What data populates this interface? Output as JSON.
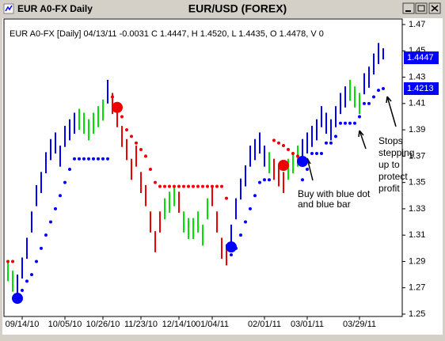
{
  "window_title": "EUR A0-FX Daily",
  "chart_data": {
    "type": "hl_bars",
    "title": "EUR/USD (FOREX)",
    "info": "EUR A0-FX [Daily] 04/13/11  -0.0031 C 1.4447, H 1.4520, L 1.4435, O 1.4478, V 0",
    "categories": [
      null,
      null,
      null,
      "09/14/10",
      null,
      null,
      null,
      null,
      null,
      null,
      null,
      null,
      "10/05/10",
      null,
      null,
      null,
      null,
      null,
      null,
      null,
      "10/26/10",
      null,
      null,
      null,
      null,
      null,
      null,
      null,
      "11/23/10",
      null,
      null,
      null,
      null,
      null,
      null,
      null,
      "12/14/10",
      null,
      null,
      null,
      null,
      null,
      null,
      "01/04/11",
      null,
      null,
      null,
      null,
      null,
      null,
      null,
      null,
      null,
      null,
      "02/01/11",
      null,
      null,
      null,
      null,
      null,
      null,
      null,
      null,
      "03/01/11",
      null,
      null,
      null,
      null,
      null,
      null,
      null,
      null,
      null,
      null,
      "03/29/11",
      null,
      null,
      null,
      null,
      null
    ],
    "high": [
      1.291,
      1.283,
      1.28,
      1.293,
      1.308,
      1.328,
      1.348,
      1.358,
      1.373,
      1.383,
      1.388,
      1.378,
      1.393,
      1.398,
      1.403,
      1.406,
      1.403,
      1.398,
      1.403,
      1.408,
      1.413,
      1.428,
      1.418,
      1.408,
      1.393,
      1.383,
      1.368,
      1.378,
      1.358,
      1.348,
      1.328,
      1.313,
      1.328,
      1.338,
      1.343,
      1.348,
      1.343,
      1.328,
      1.323,
      1.323,
      1.328,
      1.318,
      1.338,
      1.348,
      1.328,
      1.308,
      1.303,
      1.318,
      1.338,
      1.353,
      1.363,
      1.378,
      1.383,
      1.388,
      1.378,
      1.373,
      1.368,
      1.363,
      1.358,
      1.368,
      1.373,
      1.378,
      1.383,
      1.388,
      1.393,
      1.398,
      1.408,
      1.403,
      1.398,
      1.408,
      1.418,
      1.423,
      1.428,
      1.423,
      1.418,
      1.433,
      1.438,
      1.448,
      1.456,
      1.452
    ],
    "low": [
      1.275,
      1.267,
      1.264,
      1.277,
      1.292,
      1.312,
      1.332,
      1.342,
      1.357,
      1.367,
      1.372,
      1.362,
      1.377,
      1.382,
      1.387,
      1.39,
      1.387,
      1.382,
      1.387,
      1.392,
      1.397,
      1.41,
      1.402,
      1.392,
      1.377,
      1.367,
      1.352,
      1.362,
      1.342,
      1.332,
      1.312,
      1.297,
      1.312,
      1.322,
      1.327,
      1.332,
      1.327,
      1.312,
      1.307,
      1.307,
      1.312,
      1.302,
      1.322,
      1.332,
      1.312,
      1.292,
      1.287,
      1.302,
      1.322,
      1.337,
      1.347,
      1.362,
      1.367,
      1.372,
      1.362,
      1.357,
      1.352,
      1.347,
      1.342,
      1.352,
      1.357,
      1.362,
      1.367,
      1.372,
      1.377,
      1.382,
      1.392,
      1.387,
      1.382,
      1.392,
      1.402,
      1.407,
      1.412,
      1.407,
      1.402,
      1.417,
      1.422,
      1.432,
      1.44,
      1.4435
    ],
    "bar_colors": "ggbbbbbbbbbbbbbggggggbrrrrrrrrrrrgggrggggggrrrrbbbbbbbbgrrrgggbbbbbbbbbbgggbbbbb",
    "stops": [
      1.29,
      1.29,
      1.265,
      1.268,
      1.275,
      1.28,
      1.29,
      1.3,
      1.31,
      1.32,
      1.33,
      1.34,
      1.35,
      1.36,
      1.368,
      1.368,
      1.368,
      1.368,
      1.368,
      1.368,
      1.368,
      1.368,
      1.415,
      1.41,
      1.4,
      1.39,
      1.385,
      1.38,
      1.375,
      1.37,
      1.36,
      1.35,
      1.347,
      1.347,
      1.347,
      1.347,
      1.347,
      1.347,
      1.347,
      1.347,
      1.347,
      1.347,
      1.347,
      1.347,
      1.347,
      1.347,
      1.338,
      1.295,
      1.3,
      1.31,
      1.32,
      1.33,
      1.34,
      1.35,
      1.352,
      1.352,
      1.382,
      1.38,
      1.378,
      1.375,
      1.372,
      1.37,
      1.352,
      1.36,
      1.372,
      1.372,
      1.372,
      1.38,
      1.38,
      1.385,
      1.395,
      1.395,
      1.395,
      1.395,
      1.4,
      1.41,
      1.41,
      1.415,
      1.42,
      1.4213
    ],
    "stop_colors": "rrbbbbbbbbbbbbbbbbbbbbrrrrrrrrrrrrrrrrrrrrrrrrrbbbbbbbbbrrrrrrbbbbbbbbbbbbbbbbbb",
    "palette": {
      "b": "#0000ff",
      "g": "#00e000",
      "r": "#ee0000"
    },
    "signals": [
      {
        "bar": 2,
        "value": 1.262,
        "color": "b"
      },
      {
        "bar": 23,
        "value": 1.407,
        "color": "r"
      },
      {
        "bar": 47,
        "value": 1.301,
        "color": "b"
      },
      {
        "bar": 58,
        "value": 1.363,
        "color": "r"
      },
      {
        "bar": 62,
        "value": 1.366,
        "color": "b"
      }
    ],
    "last_price": 1.4447,
    "stop_price": 1.4213,
    "ylim": [
      1.25,
      1.47
    ],
    "yticks": [
      1.25,
      1.27,
      1.29,
      1.31,
      1.33,
      1.35,
      1.37,
      1.39,
      1.41,
      1.43,
      1.45,
      1.47
    ],
    "annotations": [
      [
        "Buy with blue dot",
        "and blue bar"
      ],
      [
        "Stops",
        "stepping",
        "up to",
        "protect",
        "profit"
      ]
    ]
  }
}
